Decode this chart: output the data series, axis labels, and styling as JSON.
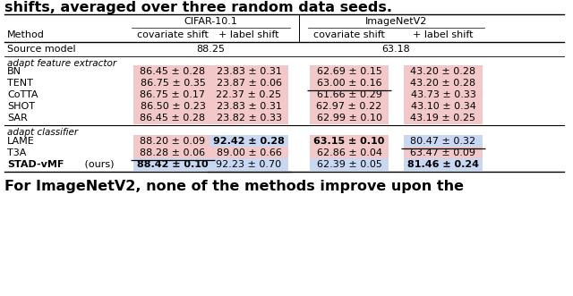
{
  "title": "shifts, averaged over three random data seeds.",
  "footer": "For ImageNetV2, none of the methods improve upon the",
  "col_group1_label": "CIFAR-10.1",
  "col_group2_label": "ImageNetV2",
  "col_sub1": "covariate shift",
  "col_sub2": "+ label shift",
  "col_sub3": "covariate shift",
  "col_sub4": "+ label shift",
  "method_header": "Method",
  "source_label": "Source model",
  "source_v1": "88.25",
  "source_v2": "63.18",
  "section1_header": "adapt feature extractor",
  "section2_header": "adapt classifier",
  "fe_rows": [
    {
      "method": "BN",
      "bold": false,
      "cells": [
        {
          "text": "86.45 ± 0.28",
          "bold": false,
          "ul": false,
          "bg": "pink"
        },
        {
          "text": "23.83 ± 0.31",
          "bold": false,
          "ul": false,
          "bg": "pink"
        },
        {
          "text": "62.69 ± 0.15",
          "bold": false,
          "ul": false,
          "bg": "pink"
        },
        {
          "text": "43.20 ± 0.28",
          "bold": false,
          "ul": false,
          "bg": "pink"
        }
      ]
    },
    {
      "method": "TENT",
      "bold": false,
      "cells": [
        {
          "text": "86.75 ± 0.35",
          "bold": false,
          "ul": false,
          "bg": "pink"
        },
        {
          "text": "23.87 ± 0.06",
          "bold": false,
          "ul": false,
          "bg": "pink"
        },
        {
          "text": "63.00 ± 0.16",
          "bold": false,
          "ul": true,
          "bg": "pink"
        },
        {
          "text": "43.20 ± 0.28",
          "bold": false,
          "ul": false,
          "bg": "pink"
        }
      ]
    },
    {
      "method": "CoTTA",
      "bold": false,
      "cells": [
        {
          "text": "86.75 ± 0.17",
          "bold": false,
          "ul": false,
          "bg": "pink"
        },
        {
          "text": "22.37 ± 0.25",
          "bold": false,
          "ul": false,
          "bg": "pink"
        },
        {
          "text": "61.66 ± 0.29",
          "bold": false,
          "ul": false,
          "bg": "pink"
        },
        {
          "text": "43.73 ± 0.33",
          "bold": false,
          "ul": false,
          "bg": "pink"
        }
      ]
    },
    {
      "method": "SHOT",
      "bold": false,
      "cells": [
        {
          "text": "86.50 ± 0.23",
          "bold": false,
          "ul": false,
          "bg": "pink"
        },
        {
          "text": "23.83 ± 0.31",
          "bold": false,
          "ul": false,
          "bg": "pink"
        },
        {
          "text": "62.97 ± 0.22",
          "bold": false,
          "ul": false,
          "bg": "pink"
        },
        {
          "text": "43.10 ± 0.34",
          "bold": false,
          "ul": false,
          "bg": "pink"
        }
      ]
    },
    {
      "method": "SAR",
      "bold": false,
      "cells": [
        {
          "text": "86.45 ± 0.28",
          "bold": false,
          "ul": false,
          "bg": "pink"
        },
        {
          "text": "23.82 ± 0.33",
          "bold": false,
          "ul": false,
          "bg": "pink"
        },
        {
          "text": "62.99 ± 0.10",
          "bold": false,
          "ul": false,
          "bg": "pink"
        },
        {
          "text": "43.19 ± 0.25",
          "bold": false,
          "ul": false,
          "bg": "pink"
        }
      ]
    }
  ],
  "cl_rows": [
    {
      "method": "LAME",
      "bold": false,
      "cells": [
        {
          "text": "88.20 ± 0.09",
          "bold": false,
          "ul": false,
          "bg": "pink"
        },
        {
          "text": "92.42 ± 0.28",
          "bold": true,
          "ul": false,
          "bg": "blue"
        },
        {
          "text": "63.15 ± 0.10",
          "bold": true,
          "ul": false,
          "bg": "pink"
        },
        {
          "text": "80.47 ± 0.32",
          "bold": false,
          "ul": true,
          "bg": "blue"
        }
      ]
    },
    {
      "method": "T3A",
      "bold": false,
      "cells": [
        {
          "text": "88.28 ± 0.06",
          "bold": false,
          "ul": true,
          "bg": "pink"
        },
        {
          "text": "89.00 ± 0.66",
          "bold": false,
          "ul": false,
          "bg": "pink"
        },
        {
          "text": "62.86 ± 0.04",
          "bold": false,
          "ul": false,
          "bg": "pink"
        },
        {
          "text": "63.47 ± 0.09",
          "bold": false,
          "ul": false,
          "bg": "pink"
        }
      ]
    },
    {
      "method": "STAD-vMF (ours)",
      "bold": true,
      "bold_partial": true,
      "cells": [
        {
          "text": "88.42 ± 0.10",
          "bold": true,
          "ul": false,
          "bg": "blue"
        },
        {
          "text": "92.23 ± 0.70",
          "bold": false,
          "ul": true,
          "bg": "blue"
        },
        {
          "text": "62.39 ± 0.05",
          "bold": false,
          "ul": false,
          "bg": "blue"
        },
        {
          "text": "81.46 ± 0.24",
          "bold": true,
          "ul": false,
          "bg": "blue"
        }
      ]
    }
  ],
  "pink_color": "#f2c8c8",
  "blue_color": "#c8d8f2",
  "bg_color": "#ffffff",
  "font_size": 8.0,
  "title_fontsize": 11.5,
  "footer_fontsize": 11.5
}
